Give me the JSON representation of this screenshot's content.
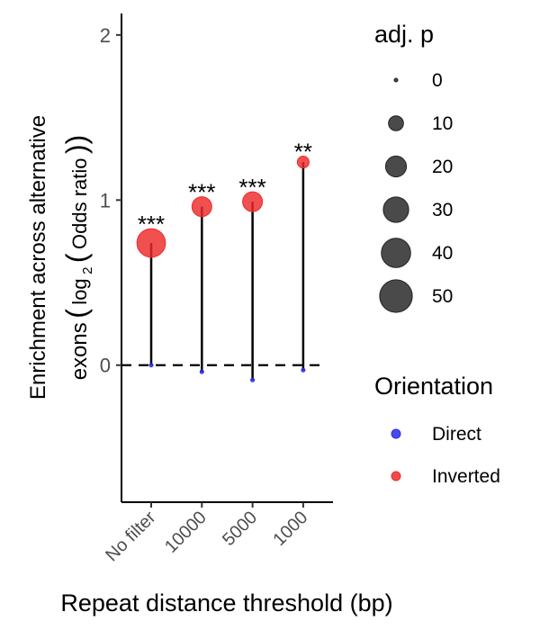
{
  "chart_data": {
    "type": "scatter",
    "categories": [
      "No filter",
      "10000",
      "5000",
      "1000"
    ],
    "series": [
      {
        "name": "Direct",
        "color": "#2a2ae6",
        "values": [
          0.0,
          -0.04,
          -0.09,
          -0.03
        ],
        "adj_p": [
          0,
          0,
          0,
          0
        ]
      },
      {
        "name": "Inverted",
        "color": "#ee2a2a",
        "values": [
          0.74,
          0.96,
          0.99,
          1.23
        ],
        "adj_p": [
          38,
          18,
          18,
          6
        ]
      }
    ],
    "significance": [
      "***",
      "***",
      "***",
      "**"
    ],
    "xlabel": "Repeat distance threshold (bp)",
    "ylabel_line1": "Enrichment across alternative",
    "ylabel_line2_prefix": "exons",
    "ylabel_log": "log",
    "ylabel_sub": "2",
    "ylabel_inner": "Odds ratio",
    "ylim": [
      -0.83,
      2.13
    ],
    "yticks": [
      0,
      1,
      2
    ],
    "reference_line": 0,
    "legend_size": {
      "title": "adj. p",
      "entries": [
        {
          "label": "0",
          "value": 0
        },
        {
          "label": "10",
          "value": 10
        },
        {
          "label": "20",
          "value": 20
        },
        {
          "label": "30",
          "value": 30
        },
        {
          "label": "40",
          "value": 40
        },
        {
          "label": "50",
          "value": 50
        }
      ]
    },
    "legend_color": {
      "title": "Orientation",
      "entries": [
        {
          "label": "Direct",
          "color": "#2a2ae6"
        },
        {
          "label": "Inverted",
          "color": "#ee2a2a"
        }
      ]
    },
    "legend_placement": "right",
    "grid": false
  }
}
